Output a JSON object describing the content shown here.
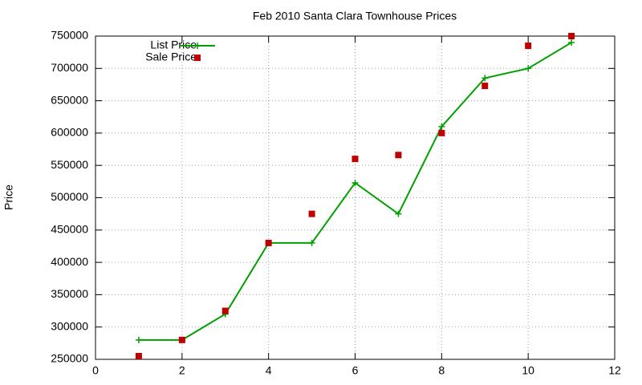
{
  "chart_data": {
    "type": "line",
    "title": "Feb 2010 Santa Clara Townhouse Prices",
    "y_label": "Price",
    "x": [
      1,
      2,
      3,
      4,
      5,
      6,
      7,
      8,
      9,
      10,
      11
    ],
    "series": [
      {
        "name": "List Price",
        "color": "#00a000",
        "style": "linespoints",
        "values": [
          280000,
          280000,
          320000,
          430000,
          430000,
          523000,
          475000,
          610000,
          685000,
          700000,
          740000
        ]
      },
      {
        "name": "Sale Price",
        "color": "#c00000",
        "style": "points",
        "values": [
          255000,
          280000,
          325000,
          430000,
          475000,
          560000,
          566000,
          600000,
          673000,
          735000,
          750000
        ]
      }
    ],
    "xlim": [
      0,
      12
    ],
    "xticks": [
      0,
      2,
      4,
      6,
      8,
      10,
      12
    ],
    "ylim": [
      250000,
      750000
    ],
    "yticks": [
      250000,
      300000,
      350000,
      400000,
      450000,
      500000,
      550000,
      600000,
      650000,
      700000,
      750000
    ],
    "grid": true,
    "legend": "top-left"
  }
}
